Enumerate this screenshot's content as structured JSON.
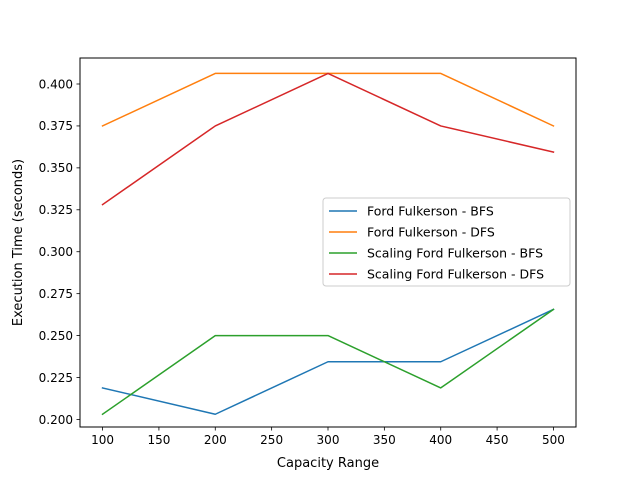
{
  "chart_data": {
    "type": "line",
    "xlabel": "Capacity Range",
    "ylabel": "Execution Time (seconds)",
    "x": [
      100,
      200,
      300,
      400,
      500
    ],
    "xlim": [
      80,
      520
    ],
    "ylim": [
      0.1955,
      0.4155
    ],
    "xticks": [
      100,
      150,
      200,
      250,
      300,
      350,
      400,
      450,
      500
    ],
    "yticks": [
      0.2,
      0.225,
      0.25,
      0.275,
      0.3,
      0.325,
      0.35,
      0.375,
      0.4
    ],
    "grid": false,
    "legend_position": "center-right",
    "series": [
      {
        "name": "Ford Fulkerson - BFS",
        "color": "#1f77b4",
        "values": [
          0.2188,
          0.2031,
          0.2344,
          0.2344,
          0.2656
        ]
      },
      {
        "name": "Ford Fulkerson - DFS",
        "color": "#ff7f0e",
        "values": [
          0.375,
          0.4063,
          0.4063,
          0.4063,
          0.375
        ]
      },
      {
        "name": "Scaling Ford Fulkerson - BFS",
        "color": "#2ca02c",
        "values": [
          0.2031,
          0.25,
          0.25,
          0.2188,
          0.2656
        ]
      },
      {
        "name": "Scaling Ford Fulkerson - DFS",
        "color": "#d62728",
        "values": [
          0.3281,
          0.375,
          0.4063,
          0.375,
          0.3594
        ]
      }
    ]
  }
}
